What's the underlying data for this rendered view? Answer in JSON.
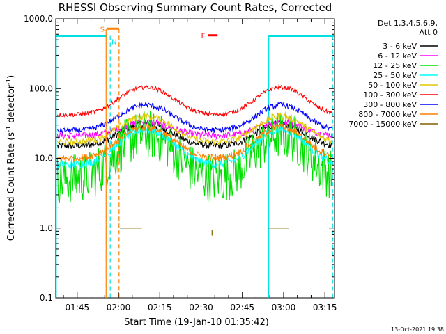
{
  "chart_data": {
    "type": "line",
    "title": "RHESSI Observing Summary Count Rates, Corrected",
    "xlabel": "Start Time (19-Jan-10 01:35:42)",
    "ylabel": "Corrected Count Rate (s⁻¹ detector⁻¹)",
    "ylabel_main": "Corrected Count Rate (s",
    "ylabel_sup1": "-1",
    "ylabel_mid": " detector",
    "ylabel_sup2": "-1",
    "ylabel_end": ")",
    "yscale": "log",
    "ylim": [
      0.1,
      1000
    ],
    "xlim_minutes": [
      97.2,
      198.5
    ],
    "x_tick_minutes": [
      105,
      120,
      135,
      150,
      165,
      180,
      195
    ],
    "x_tick_labels": [
      "01:45",
      "02:00",
      "02:15",
      "02:30",
      "02:45",
      "03:00",
      "03:15"
    ],
    "y_ticks": [
      0.1,
      1,
      10,
      100,
      1000
    ],
    "y_tick_labels": [
      "0.1",
      "1.0",
      "10.0",
      "100.0",
      "1000.0"
    ],
    "legend_title_1": "Det 1,3,4,5,6,9,",
    "legend_title_2": "Att 0",
    "legend_placement": "right",
    "series": [
      {
        "name": "3 - 6 keV",
        "color": "#000000",
        "base": 15,
        "peak": 31,
        "noise": 0.05
      },
      {
        "name": "6 - 12 keV",
        "color": "#ff00ff",
        "base": 21,
        "peak": 33,
        "noise": 0.05
      },
      {
        "name": "12 - 25 keV",
        "color": "#00e000",
        "base": 5,
        "peak": 22,
        "noise": 0.12
      },
      {
        "name": "25 - 50 keV",
        "color": "#00ffff",
        "base": 8,
        "peak": 26,
        "noise": 0.06
      },
      {
        "name": "50 - 100 keV",
        "color": "#e0c800",
        "base": 17,
        "peak": 40,
        "noise": 0.05
      },
      {
        "name": "100 - 300 keV",
        "color": "#ff0000",
        "base": 42,
        "peak": 105,
        "noise": 0.03
      },
      {
        "name": "300 - 800 keV",
        "color": "#0000ff",
        "base": 25,
        "peak": 58,
        "noise": 0.04
      },
      {
        "name": "800 - 7000 keV",
        "color": "#ff8000",
        "base": 10,
        "peak": 28,
        "noise": 0.05
      },
      {
        "name": "7000 - 15000 keV",
        "color": "#806000",
        "base": null,
        "peak": null
      }
    ],
    "peaks_minutes": [
      130,
      179
    ],
    "saa_bars": [
      [
        97.2,
        115.8
      ],
      [
        174.5,
        198.5
      ]
    ],
    "saa_level": 570,
    "saa_edges_solid": [
      97.4,
      174.6
    ],
    "saa_edges_dashed": [
      117.0,
      197.8
    ],
    "s_marker": {
      "label": "S",
      "start": 115.7,
      "end": 120.2,
      "level": 720
    },
    "n_marker": {
      "label": "N",
      "x": 117.0
    },
    "f_marker": {
      "label": "F",
      "start": 152.5,
      "end": 156.0,
      "level": 580
    },
    "night_dashed_orange": [
      115.5,
      120.2
    ],
    "high_energy_segments": [
      [
        120.5,
        128.5
      ],
      [
        174.5,
        182.0
      ]
    ],
    "high_energy_level": 1.0,
    "high_energy_spike": {
      "x": 154.0,
      "low": 0.78,
      "high": 0.95
    }
  },
  "footer": {
    "date": "13-Oct-2021 19:38"
  }
}
